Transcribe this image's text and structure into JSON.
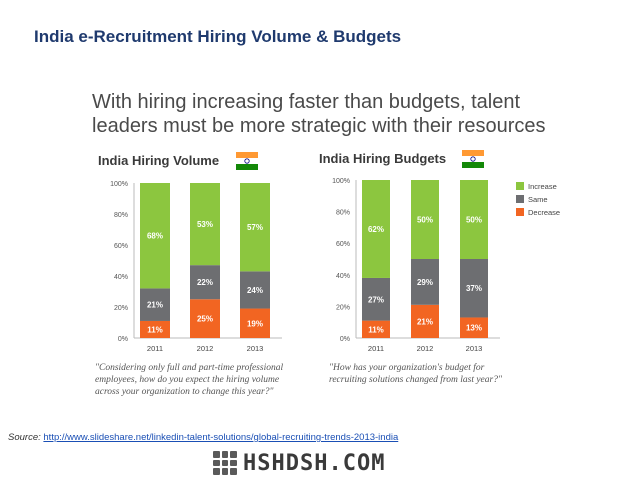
{
  "slide": {
    "title": "India e-Recruitment Hiring Volume & Budgets",
    "headline_line1": "With hiring increasing faster than budgets, talent",
    "headline_line2": "leaders must be more strategic with their resources"
  },
  "colors": {
    "increase": "#8cc63f",
    "same": "#6d6e71",
    "decrease": "#f26522",
    "title": "#1f3a6e"
  },
  "chart_data": [
    {
      "type": "bar",
      "stacked": true,
      "title": "India Hiring Volume",
      "categories": [
        "2011",
        "2012",
        "2013"
      ],
      "ylim": [
        0,
        100
      ],
      "yticks": [
        "0%",
        "20%",
        "40%",
        "60%",
        "80%",
        "100%"
      ],
      "series": [
        {
          "name": "Decrease",
          "values": [
            11,
            25,
            19
          ],
          "labels": [
            "11%",
            "25%",
            "19%"
          ]
        },
        {
          "name": "Same",
          "values": [
            21,
            22,
            24
          ],
          "labels": [
            "21%",
            "22%",
            "24%"
          ]
        },
        {
          "name": "Increase",
          "values": [
            68,
            53,
            57
          ],
          "labels": [
            "68%",
            "53%",
            "57%"
          ]
        }
      ],
      "grid": false,
      "caption": [
        "\"Considering only full and part-time professional",
        "employees, how do you expect the hiring volume",
        "across your organization to change this year?\""
      ]
    },
    {
      "type": "bar",
      "stacked": true,
      "title": "India Hiring Budgets",
      "categories": [
        "2011",
        "2012",
        "2013"
      ],
      "ylim": [
        0,
        100
      ],
      "yticks": [
        "0%",
        "20%",
        "40%",
        "60%",
        "80%",
        "100%"
      ],
      "series": [
        {
          "name": "Decrease",
          "values": [
            11,
            21,
            13
          ],
          "labels": [
            "11%",
            "21%",
            "13%"
          ]
        },
        {
          "name": "Same",
          "values": [
            27,
            29,
            37
          ],
          "labels": [
            "27%",
            "29%",
            "37%"
          ]
        },
        {
          "name": "Increase",
          "values": [
            62,
            50,
            50
          ],
          "labels": [
            "62%",
            "50%",
            "50%"
          ]
        }
      ],
      "legend": {
        "position": "right",
        "entries": [
          "Increase",
          "Same",
          "Decrease"
        ]
      },
      "grid": false,
      "caption": [
        "\"How has your organization's budget for",
        "recruiting solutions changed from last year?\""
      ]
    }
  ],
  "source": {
    "label": "Source:",
    "url": "http://www.slideshare.net/linkedin-talent-solutions/global-recruiting-trends-2013-india"
  },
  "brand": {
    "text": "HSHDSH.COM"
  }
}
